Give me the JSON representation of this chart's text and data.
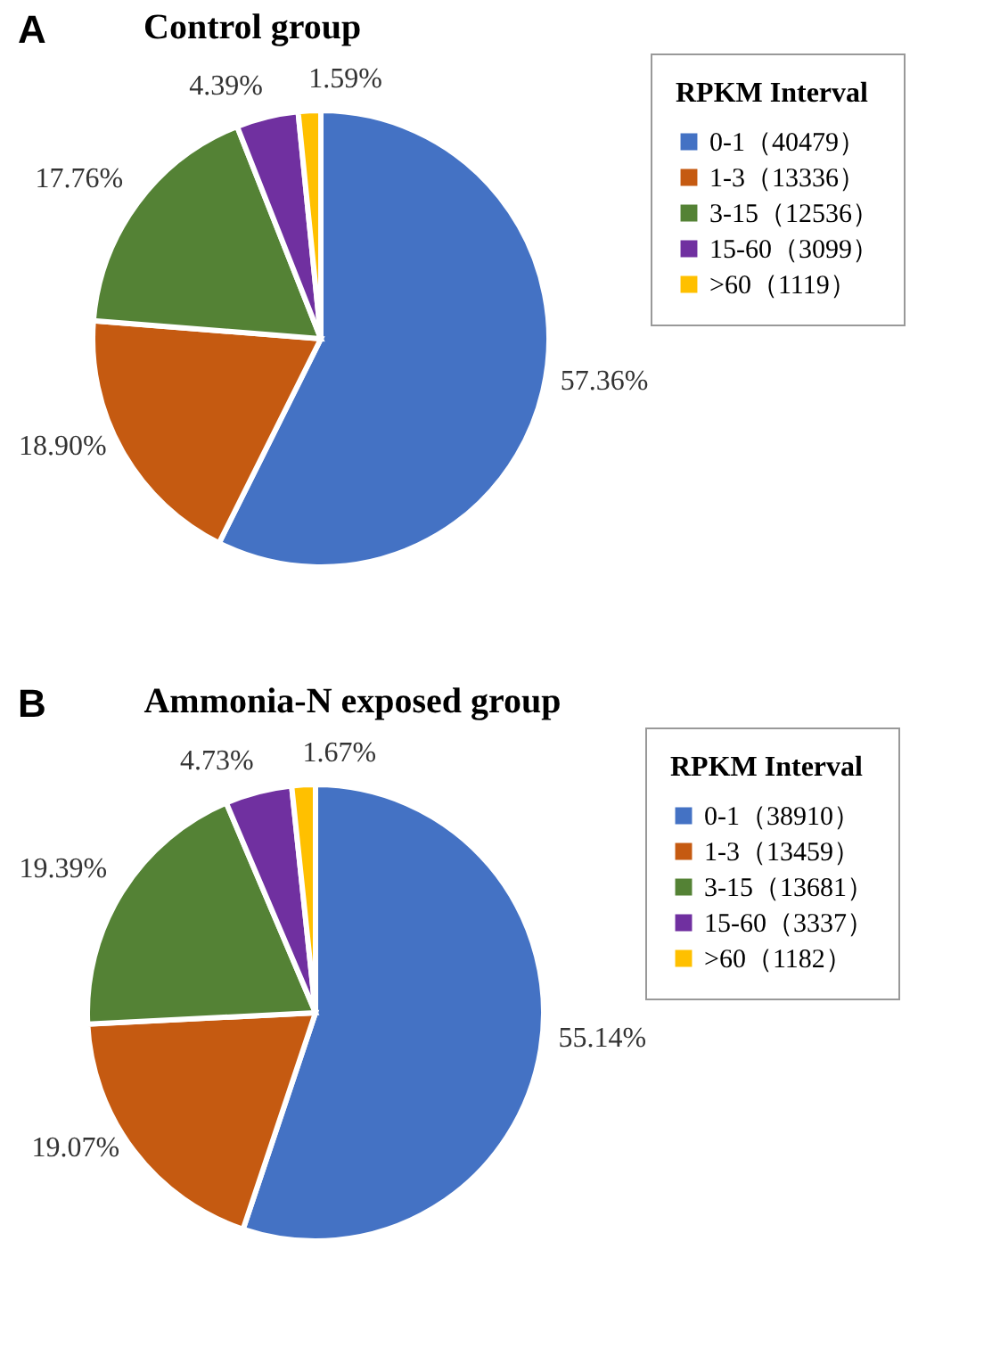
{
  "chart_data": [
    {
      "type": "pie",
      "title": "Control group",
      "legend_title": "RPKM Interval",
      "legend": "right",
      "annotations": [
        "A"
      ],
      "categories": [
        "0-1（40479）",
        "1-3（13336）",
        "3-15（12536）",
        "15-60（3099）",
        ">60（1119）"
      ],
      "values": [
        57.36,
        18.9,
        17.76,
        4.39,
        1.59
      ],
      "colors": [
        "#4472c4",
        "#c55a11",
        "#548235",
        "#7030a0",
        "#ffc000"
      ],
      "value_labels": [
        "57.36%",
        "18.90%",
        "17.76%",
        "4.39%",
        "1.59%"
      ]
    },
    {
      "type": "pie",
      "title": "Ammonia-N exposed group",
      "legend_title": "RPKM Interval",
      "legend": "right",
      "annotations": [
        "B"
      ],
      "categories": [
        "0-1（38910）",
        "1-3（13459）",
        "3-15（13681）",
        "15-60（3337）",
        ">60（1182）"
      ],
      "values": [
        55.14,
        19.07,
        19.39,
        4.73,
        1.67
      ],
      "colors": [
        "#4472c4",
        "#c55a11",
        "#548235",
        "#7030a0",
        "#ffc000"
      ],
      "value_labels": [
        "55.14%",
        "19.07%",
        "19.39%",
        "4.73%",
        "1.67%"
      ]
    }
  ]
}
